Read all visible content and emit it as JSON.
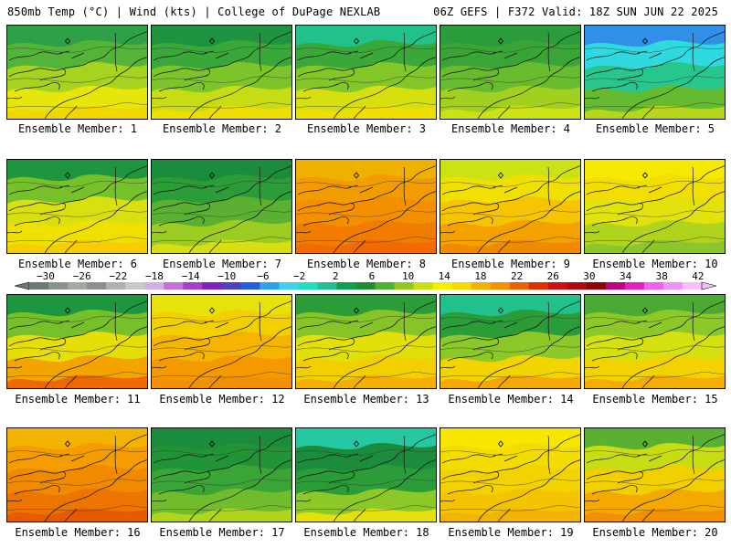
{
  "header": {
    "left_title": "850mb Temp (°C) | Wind (kts) | College of DuPage NEXLAB",
    "right_title": "06Z GEFS | F372 Valid: 18Z SUN JUN 22 2025"
  },
  "colorbar": {
    "tick_labels": [
      "−30",
      "−26",
      "−22",
      "−18",
      "−14",
      "−10",
      "−6",
      "−2",
      "2",
      "6",
      "10",
      "14",
      "18",
      "22",
      "26",
      "30",
      "34",
      "38",
      "42"
    ],
    "colors": [
      "#6a7a72",
      "#879488",
      "#a0aaa0",
      "#8e8e8e",
      "#b0b0b0",
      "#c8c8c8",
      "#d4b0e0",
      "#c470d8",
      "#a640c8",
      "#8020c0",
      "#5040c0",
      "#2060e0",
      "#30a0f0",
      "#40d0f0",
      "#20e0c0",
      "#20c090",
      "#10a050",
      "#1a9030",
      "#50b030",
      "#90c820",
      "#c8e010",
      "#f0f000",
      "#f8d800",
      "#f8b000",
      "#f89000",
      "#f06000",
      "#e03000",
      "#d01010",
      "#b00810",
      "#900000",
      "#c00080",
      "#e020c0",
      "#f060f0",
      "#f090f8",
      "#f8c0f8"
    ]
  },
  "panels": [
    {
      "caption": "Ensemble Member: 1",
      "colors": [
        "#2ea048",
        "#54b43a",
        "#a6d220",
        "#e6e60c",
        "#f2d600"
      ]
    },
    {
      "caption": "Ensemble Member: 2",
      "colors": [
        "#1e9440",
        "#3aa838",
        "#7cc42a",
        "#c8dc14",
        "#eede04"
      ]
    },
    {
      "caption": "Ensemble Member: 3",
      "colors": [
        "#22c08a",
        "#3aa838",
        "#82c628",
        "#d6e010",
        "#f0de02"
      ]
    },
    {
      "caption": "Ensemble Member: 4",
      "colors": [
        "#2a9c3c",
        "#3aa436",
        "#68ba2e",
        "#a2d020",
        "#cce214"
      ]
    },
    {
      "caption": "Ensemble Member: 5",
      "colors": [
        "#3090e8",
        "#30d8e0",
        "#26c68c",
        "#66ba30",
        "#b6d61c"
      ]
    },
    {
      "caption": "Ensemble Member: 6",
      "colors": [
        "#1e9640",
        "#76c02a",
        "#d8e010",
        "#f0e000",
        "#f4ce00"
      ]
    },
    {
      "caption": "Ensemble Member: 7",
      "colors": [
        "#1a8c3c",
        "#2a9c38",
        "#5ab030",
        "#9ccc22",
        "#d6e010"
      ]
    },
    {
      "caption": "Ensemble Member: 8",
      "colors": [
        "#f0b000",
        "#f29c00",
        "#f49000",
        "#f07c00",
        "#f26a00"
      ]
    },
    {
      "caption": "Ensemble Member: 9",
      "colors": [
        "#cce214",
        "#f0e000",
        "#f6c400",
        "#f4a200",
        "#f28a00"
      ]
    },
    {
      "caption": "Ensemble Member: 10",
      "colors": [
        "#f6e800",
        "#f2de02",
        "#e2e20c",
        "#b0d41e",
        "#8cc628"
      ]
    },
    {
      "caption": "Ensemble Member: 11",
      "colors": [
        "#1e9640",
        "#76c02a",
        "#e6de08",
        "#f4a400",
        "#ee6a00"
      ]
    },
    {
      "caption": "Ensemble Member: 12",
      "colors": [
        "#e6e20a",
        "#f2d000",
        "#f4b400",
        "#f49a00",
        "#f29000"
      ]
    },
    {
      "caption": "Ensemble Member: 13",
      "colors": [
        "#2a9c38",
        "#86c428",
        "#e2e00a",
        "#f2d000",
        "#f4b000"
      ]
    },
    {
      "caption": "Ensemble Member: 14",
      "colors": [
        "#22c08c",
        "#2a9c38",
        "#8cc828",
        "#f2d400",
        "#f4a800"
      ]
    },
    {
      "caption": "Ensemble Member: 15",
      "colors": [
        "#4aaa34",
        "#8cc828",
        "#d4e010",
        "#f2d200",
        "#f4ae00"
      ]
    },
    {
      "caption": "Ensemble Member: 16",
      "colors": [
        "#f2b400",
        "#f49c00",
        "#f28a00",
        "#ee7400",
        "#e85a00"
      ]
    },
    {
      "caption": "Ensemble Member: 17",
      "colors": [
        "#1a8c3c",
        "#229438",
        "#3aa436",
        "#70bc2c",
        "#b2d41c"
      ]
    },
    {
      "caption": "Ensemble Member: 18",
      "colors": [
        "#26c8a4",
        "#1a8c3c",
        "#2a9c38",
        "#8cc828",
        "#e6e00a"
      ]
    },
    {
      "caption": "Ensemble Member: 19",
      "colors": [
        "#f6e600",
        "#f4dc00",
        "#f2d200",
        "#f4c400",
        "#f2b400"
      ]
    },
    {
      "caption": "Ensemble Member: 20",
      "colors": [
        "#5ab030",
        "#c8dc14",
        "#f2d000",
        "#f4a800",
        "#f29000"
      ]
    }
  ]
}
